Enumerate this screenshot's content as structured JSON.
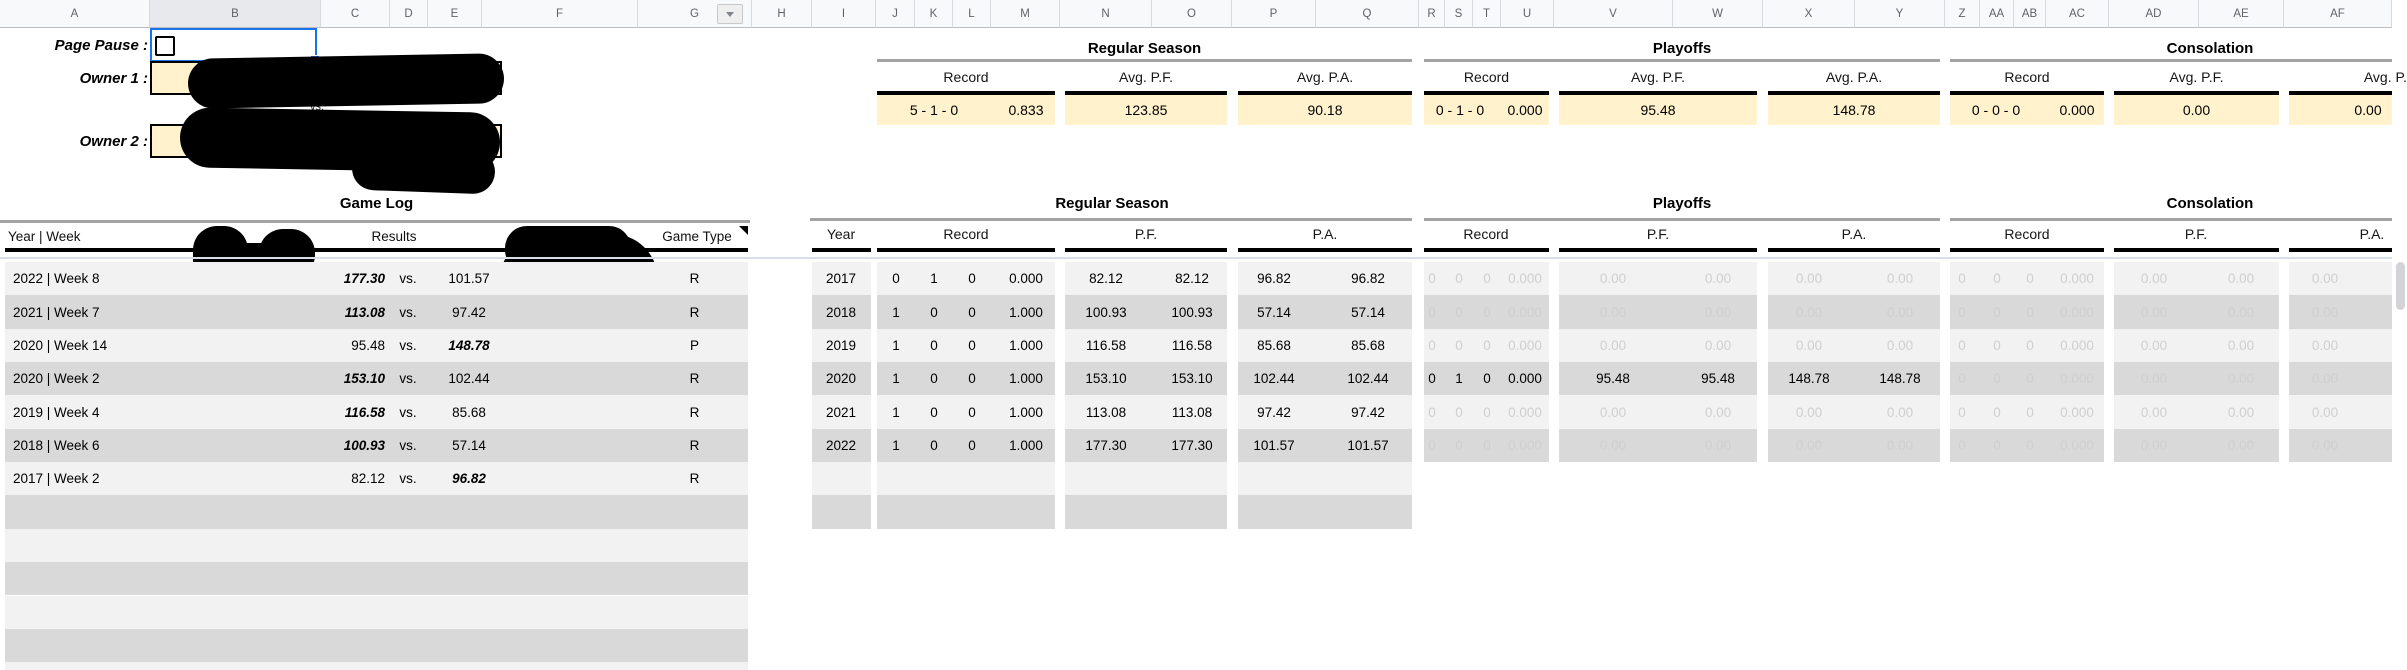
{
  "columns": [
    "A",
    "B",
    "C",
    "D",
    "E",
    "F",
    "G",
    "H",
    "I",
    "J",
    "K",
    "L",
    "M",
    "N",
    "O",
    "P",
    "Q",
    "R",
    "S",
    "T",
    "U",
    "V",
    "W",
    "X",
    "Y",
    "Z",
    "AA",
    "AB",
    "AC",
    "AD",
    "AE",
    "AF"
  ],
  "top_left": {
    "page_pause_label": "Page Pause :",
    "owner1_label": "Owner 1 :",
    "owner2_label": "Owner 2 :",
    "vs_label": "vs."
  },
  "summary": {
    "sections": [
      {
        "title": "Regular Season",
        "record_label": "Record",
        "record": "5 - 1 - 0",
        "pct": "0.833",
        "avg_pf_label": "Avg. P.F.",
        "avg_pf": "123.85",
        "avg_pa_label": "Avg. P.A.",
        "avg_pa": "90.18"
      },
      {
        "title": "Playoffs",
        "record_label": "Record",
        "record": "0 - 1 - 0",
        "pct": "0.000",
        "avg_pf_label": "Avg. P.F.",
        "avg_pf": "95.48",
        "avg_pa_label": "Avg. P.A.",
        "avg_pa": "148.78"
      },
      {
        "title": "Consolation",
        "record_label": "Record",
        "record": "0 - 0 - 0",
        "pct": "0.000",
        "avg_pf_label": "Avg. P.F.",
        "avg_pf": "0.00",
        "avg_pa_label": "Avg. P.A.",
        "avg_pa": "0.00"
      }
    ]
  },
  "game_log": {
    "title": "Game Log",
    "col_year_week": "Year | Week",
    "col_results": "Results",
    "col_game_type": "Game Type",
    "vs": "vs.",
    "rows": [
      {
        "year_week": "2022 | Week 8",
        "score1": "177.30",
        "score2": "101.57",
        "winner": 1,
        "game_type": "R"
      },
      {
        "year_week": "2021 | Week 7",
        "score1": "113.08",
        "score2": "97.42",
        "winner": 1,
        "game_type": "R"
      },
      {
        "year_week": "2020 | Week 14",
        "score1": "95.48",
        "score2": "148.78",
        "winner": 2,
        "game_type": "P"
      },
      {
        "year_week": "2020 | Week 2",
        "score1": "153.10",
        "score2": "102.44",
        "winner": 1,
        "game_type": "R"
      },
      {
        "year_week": "2019 | Week 4",
        "score1": "116.58",
        "score2": "85.68",
        "winner": 1,
        "game_type": "R"
      },
      {
        "year_week": "2018 | Week 6",
        "score1": "100.93",
        "score2": "57.14",
        "winner": 1,
        "game_type": "R"
      },
      {
        "year_week": "2017 | Week 2",
        "score1": "82.12",
        "score2": "96.82",
        "winner": 2,
        "game_type": "R"
      }
    ],
    "empty_rows": 6
  },
  "yearly": {
    "section_titles": [
      "Regular Season",
      "Playoffs",
      "Consolation"
    ],
    "headers": {
      "year": "Year",
      "record": "Record",
      "pf": "P.F.",
      "pa": "P.A."
    },
    "inactive_record": [
      "0",
      "0",
      "0",
      "0.000"
    ],
    "inactive_avg": [
      "0.00",
      "0.00"
    ],
    "rows": [
      {
        "year": "2017",
        "record": [
          "0",
          "1",
          "0",
          "0.000"
        ],
        "pf": [
          "82.12",
          "82.12"
        ],
        "pa": [
          "96.82",
          "96.82"
        ],
        "playoffs": null
      },
      {
        "year": "2018",
        "record": [
          "1",
          "0",
          "0",
          "1.000"
        ],
        "pf": [
          "100.93",
          "100.93"
        ],
        "pa": [
          "57.14",
          "57.14"
        ],
        "playoffs": null
      },
      {
        "year": "2019",
        "record": [
          "1",
          "0",
          "0",
          "1.000"
        ],
        "pf": [
          "116.58",
          "116.58"
        ],
        "pa": [
          "85.68",
          "85.68"
        ],
        "playoffs": null
      },
      {
        "year": "2020",
        "record": [
          "1",
          "0",
          "0",
          "1.000"
        ],
        "pf": [
          "153.10",
          "153.10"
        ],
        "pa": [
          "102.44",
          "102.44"
        ],
        "playoffs": {
          "record": [
            "0",
            "1",
            "0",
            "0.000"
          ],
          "pf": [
            "95.48",
            "95.48"
          ],
          "pa": [
            "148.78",
            "148.78"
          ]
        }
      },
      {
        "year": "2021",
        "record": [
          "1",
          "0",
          "0",
          "1.000"
        ],
        "pf": [
          "113.08",
          "113.08"
        ],
        "pa": [
          "97.42",
          "97.42"
        ],
        "playoffs": null
      },
      {
        "year": "2022",
        "record": [
          "1",
          "0",
          "0",
          "1.000"
        ],
        "pf": [
          "177.30",
          "177.30"
        ],
        "pa": [
          "101.57",
          "101.57"
        ],
        "playoffs": null
      }
    ],
    "empty_rows": 2
  },
  "colors": {
    "highlight_fill": "#fff2cc",
    "stripe_light": "#f2f2f2",
    "stripe_dark": "#d9d9d9",
    "selection_blue": "#1a73e8",
    "inactive_text": "#cfcfcf",
    "redaction": "#000000",
    "frozen_divider": "#d8dfe9"
  }
}
